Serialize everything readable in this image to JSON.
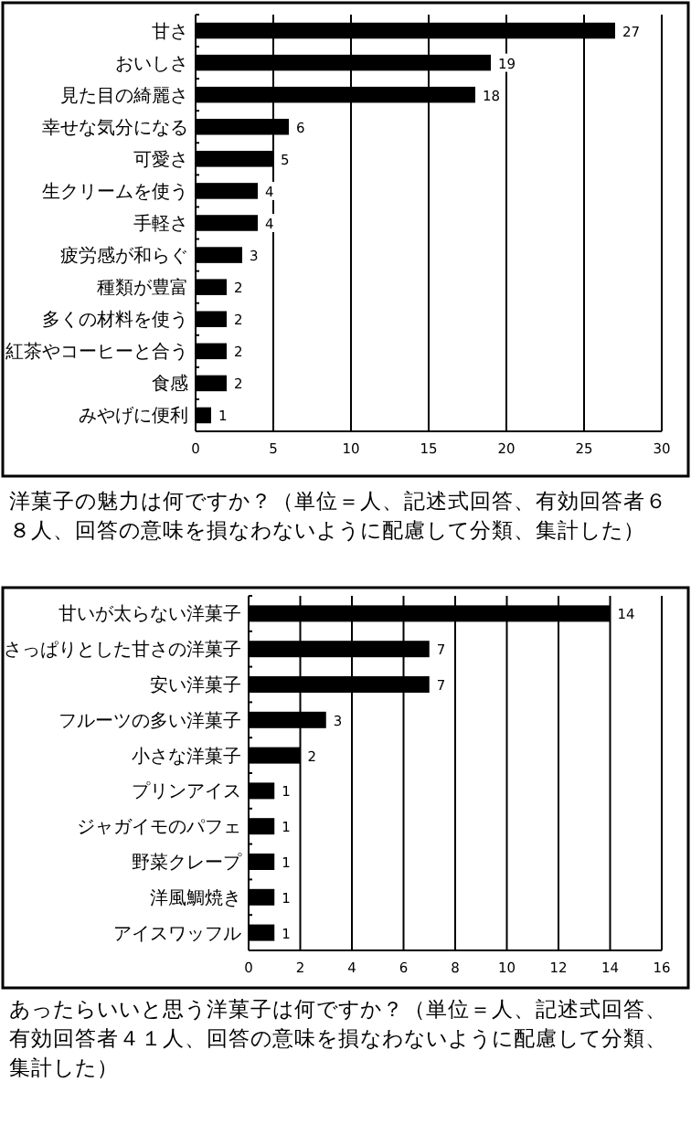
{
  "chart_data": [
    {
      "type": "bar",
      "orientation": "horizontal",
      "title": "洋菓子の魅力は何ですか？（単位＝人、記述式回答、有効回答者６８人、回答の意味を損なわないように配慮して分類、集計した）",
      "categories": [
        "甘さ",
        "おいしさ",
        "見た目の綺麗さ",
        "幸せな気分になる",
        "可愛さ",
        "生クリームを使う",
        "手軽さ",
        "疲労感が和らぐ",
        "種類が豊富",
        "多くの材料を使う",
        "紅茶やコーヒーと合う",
        "食感",
        "みやげに便利"
      ],
      "values": [
        27,
        19,
        18,
        6,
        5,
        4,
        4,
        3,
        2,
        2,
        2,
        2,
        1
      ],
      "color": "#000000",
      "xlim": [
        0,
        30
      ],
      "xticks": [
        0,
        5,
        10,
        15,
        20,
        25,
        30
      ],
      "grid": "x",
      "data_labels": true
    },
    {
      "type": "bar",
      "orientation": "horizontal",
      "title": "あったらいいと思う洋菓子は何ですか？（単位＝人、記述式回答、有効回答者４１人、回答の意味を損なわないように配慮して分類、集計した）",
      "categories": [
        "甘いが太らない洋菓子",
        "さっぱりとした甘さの洋菓子",
        "安い洋菓子",
        "フルーツの多い洋菓子",
        "小さな洋菓子",
        "プリンアイス",
        "ジャガイモのパフェ",
        "野菜クレープ",
        "洋風鯛焼き",
        "アイスワッフル"
      ],
      "values": [
        14,
        7,
        7,
        3,
        2,
        1,
        1,
        1,
        1,
        1
      ],
      "color": "#000000",
      "xlim": [
        0,
        16
      ],
      "xticks": [
        0,
        2,
        4,
        6,
        8,
        10,
        12,
        14,
        16
      ],
      "grid": "x",
      "data_labels": true
    }
  ]
}
